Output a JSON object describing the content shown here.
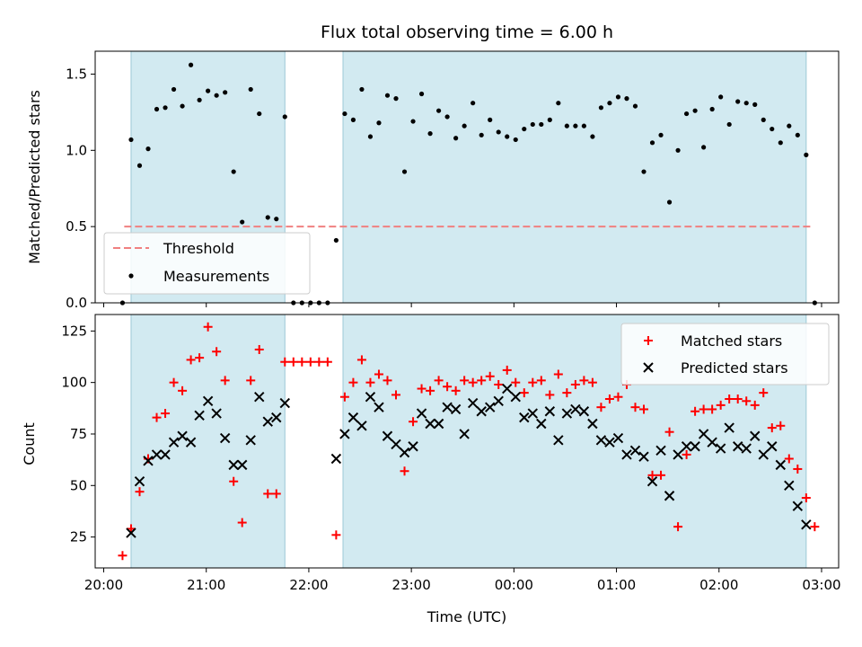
{
  "chart_data": [
    {
      "type": "scatter",
      "title": "Flux total observing time = 6.00 h",
      "ylabel": "Matched/Predicted stars",
      "ylim": [
        0,
        1.65
      ],
      "yticks": [
        0.0,
        0.5,
        1.0,
        1.5
      ],
      "ytick_labels": [
        "0.0",
        "0.5",
        "1.0",
        "1.5"
      ],
      "threshold": {
        "name": "Threshold",
        "y": 0.5,
        "x_range": [
          "20:12",
          "02:55"
        ],
        "color": "#f08080"
      },
      "shaded_regions": [
        [
          "20:16",
          "21:46"
        ],
        [
          "22:20",
          "02:51"
        ]
      ],
      "shade_color": "#add8e6",
      "legend": {
        "position": "lower-left",
        "entries": [
          "Threshold",
          "Measurements"
        ]
      },
      "series": [
        {
          "name": "Measurements",
          "marker": "dot",
          "color": "#000000",
          "x": [
            "20:11",
            "20:16",
            "20:21",
            "20:26",
            "20:31",
            "20:36",
            "20:41",
            "20:46",
            "20:51",
            "20:56",
            "21:01",
            "21:06",
            "21:11",
            "21:16",
            "21:21",
            "21:26",
            "21:31",
            "21:36",
            "21:41",
            "21:46",
            "21:51",
            "21:56",
            "22:01",
            "22:06",
            "22:11",
            "22:16",
            "22:21",
            "22:26",
            "22:31",
            "22:36",
            "22:41",
            "22:46",
            "22:51",
            "22:56",
            "23:01",
            "23:06",
            "23:11",
            "23:16",
            "23:21",
            "23:26",
            "23:31",
            "23:36",
            "23:41",
            "23:46",
            "23:51",
            "23:56",
            "00:01",
            "00:06",
            "00:11",
            "00:16",
            "00:21",
            "00:26",
            "00:31",
            "00:36",
            "00:41",
            "00:46",
            "00:51",
            "00:56",
            "01:01",
            "01:06",
            "01:11",
            "01:16",
            "01:21",
            "01:26",
            "01:31",
            "01:36",
            "01:41",
            "01:46",
            "01:51",
            "01:56",
            "02:01",
            "02:06",
            "02:11",
            "02:16",
            "02:21",
            "02:26",
            "02:31",
            "02:36",
            "02:41",
            "02:46",
            "02:51",
            "02:56"
          ],
          "y": [
            0.0,
            1.07,
            0.9,
            1.01,
            1.27,
            1.28,
            1.4,
            1.29,
            1.56,
            1.33,
            1.39,
            1.36,
            1.38,
            0.86,
            0.53,
            1.4,
            1.24,
            0.56,
            0.55,
            1.22,
            0.0,
            0.0,
            0.0,
            0.0,
            0.0,
            0.41,
            1.24,
            1.2,
            1.4,
            1.09,
            1.18,
            1.36,
            1.34,
            0.86,
            1.19,
            1.37,
            1.11,
            1.26,
            1.22,
            1.08,
            1.16,
            1.31,
            1.1,
            1.2,
            1.12,
            1.09,
            1.07,
            1.14,
            1.17,
            1.17,
            1.2,
            1.31,
            1.16,
            1.16,
            1.16,
            1.09,
            1.28,
            1.31,
            1.35,
            1.34,
            1.29,
            0.86,
            1.05,
            1.1,
            0.66,
            1.0,
            1.24,
            1.26,
            1.02,
            1.27,
            1.35,
            1.17,
            1.32,
            1.31,
            1.3,
            1.2,
            1.14,
            1.05,
            1.16,
            1.1,
            0.97,
            0.0
          ]
        }
      ]
    },
    {
      "type": "scatter",
      "xlabel": "Time (UTC)",
      "ylabel": "Count",
      "ylim": [
        10,
        133
      ],
      "yticks": [
        25,
        50,
        75,
        100,
        125
      ],
      "ytick_labels": [
        "25",
        "50",
        "75",
        "100",
        "125"
      ],
      "xlim": [
        "19:55",
        "03:10"
      ],
      "xticks": [
        "20:00",
        "21:00",
        "22:00",
        "23:00",
        "00:00",
        "01:00",
        "02:00",
        "03:00"
      ],
      "shaded_regions": [
        [
          "20:16",
          "21:46"
        ],
        [
          "22:20",
          "02:51"
        ]
      ],
      "shade_color": "#add8e6",
      "legend": {
        "position": "upper-right",
        "entries": [
          "Matched stars",
          "Predicted stars"
        ]
      },
      "series": [
        {
          "name": "Matched stars",
          "marker": "plus",
          "color": "#ff0000",
          "x": [
            "20:11",
            "20:16",
            "20:21",
            "20:26",
            "20:31",
            "20:36",
            "20:41",
            "20:46",
            "20:51",
            "20:56",
            "21:01",
            "21:06",
            "21:11",
            "21:16",
            "21:21",
            "21:26",
            "21:31",
            "21:36",
            "21:41",
            "21:46",
            "21:51",
            "21:56",
            "22:01",
            "22:06",
            "22:11",
            "22:16",
            "22:21",
            "22:26",
            "22:31",
            "22:36",
            "22:41",
            "22:46",
            "22:51",
            "22:56",
            "23:01",
            "23:06",
            "23:11",
            "23:16",
            "23:21",
            "23:26",
            "23:31",
            "23:36",
            "23:41",
            "23:46",
            "23:51",
            "23:56",
            "00:01",
            "00:06",
            "00:11",
            "00:16",
            "00:21",
            "00:26",
            "00:31",
            "00:36",
            "00:41",
            "00:46",
            "00:51",
            "00:56",
            "01:01",
            "01:06",
            "01:11",
            "01:16",
            "01:21",
            "01:26",
            "01:31",
            "01:36",
            "01:41",
            "01:46",
            "01:51",
            "01:56",
            "02:01",
            "02:06",
            "02:11",
            "02:16",
            "02:21",
            "02:26",
            "02:31",
            "02:36",
            "02:41",
            "02:46",
            "02:51",
            "02:56"
          ],
          "y": [
            16,
            29,
            47,
            63,
            83,
            85,
            100,
            96,
            111,
            112,
            127,
            115,
            101,
            52,
            32,
            101,
            116,
            46,
            46,
            110,
            110,
            110,
            110,
            110,
            110,
            26,
            93,
            100,
            111,
            100,
            104,
            101,
            94,
            57,
            81,
            97,
            96,
            101,
            98,
            96,
            101,
            100,
            101,
            103,
            99,
            106,
            100,
            95,
            100,
            101,
            94,
            104,
            95,
            99,
            101,
            100,
            88,
            92,
            93,
            99,
            88,
            87,
            55,
            55,
            76,
            30,
            65,
            86,
            87,
            87,
            89,
            92,
            92,
            91,
            89,
            95,
            78,
            79,
            63,
            58,
            44,
            30
          ]
        },
        {
          "name": "Predicted stars",
          "marker": "x",
          "color": "#000000",
          "x": [
            "20:16",
            "20:21",
            "20:26",
            "20:31",
            "20:36",
            "20:41",
            "20:46",
            "20:51",
            "20:56",
            "21:01",
            "21:06",
            "21:11",
            "21:16",
            "21:21",
            "21:26",
            "21:31",
            "21:36",
            "21:41",
            "21:46",
            "22:16",
            "22:21",
            "22:26",
            "22:31",
            "22:36",
            "22:41",
            "22:46",
            "22:51",
            "22:56",
            "23:01",
            "23:06",
            "23:11",
            "23:16",
            "23:21",
            "23:26",
            "23:31",
            "23:36",
            "23:41",
            "23:46",
            "23:51",
            "23:56",
            "00:01",
            "00:06",
            "00:11",
            "00:16",
            "00:21",
            "00:26",
            "00:31",
            "00:36",
            "00:41",
            "00:46",
            "00:51",
            "00:56",
            "01:01",
            "01:06",
            "01:11",
            "01:16",
            "01:21",
            "01:26",
            "01:31",
            "01:36",
            "01:41",
            "01:46",
            "01:51",
            "01:56",
            "02:01",
            "02:06",
            "02:11",
            "02:16",
            "02:21",
            "02:26",
            "02:31",
            "02:36",
            "02:41",
            "02:46",
            "02:51"
          ],
          "y": [
            27,
            52,
            62,
            65,
            65,
            71,
            74,
            71,
            84,
            91,
            85,
            73,
            60,
            60,
            72,
            93,
            81,
            83,
            90,
            63,
            75,
            83,
            79,
            93,
            88,
            74,
            70,
            66,
            69,
            85,
            80,
            80,
            88,
            87,
            75,
            90,
            86,
            88,
            91,
            97,
            93,
            83,
            85,
            80,
            86,
            72,
            85,
            87,
            86,
            80,
            72,
            71,
            73,
            65,
            67,
            64,
            52,
            67,
            45,
            65,
            69,
            69,
            75,
            71,
            68,
            78,
            69,
            68,
            74,
            65,
            69,
            60,
            50,
            40,
            31
          ]
        }
      ]
    }
  ]
}
